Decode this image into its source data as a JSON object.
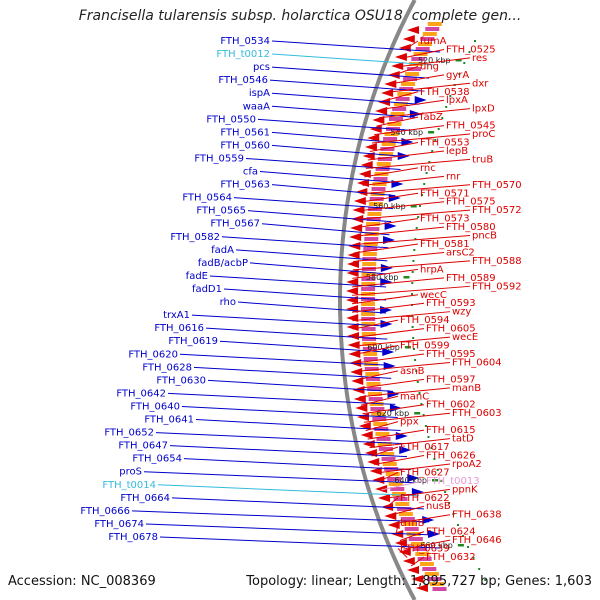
{
  "title": "Francisella tularensis subsp. holarctica OSU18, complete gen...",
  "footer": {
    "accession": "Accession: NC_008369",
    "topology": "Topology: linear; Length: 1,895,727 bp; Genes: 1,603"
  },
  "colors": {
    "forward": "#0000cc",
    "reverse": "#dd0000",
    "trna": "#33bbdd",
    "rrna_rev": "#e79ad5",
    "kbp_mark": "#228822",
    "backbone": "#888888"
  },
  "kbp_marks": [
    {
      "label": "520 kbp"
    },
    {
      "label": "540 kbp"
    },
    {
      "label": "560 kbp"
    },
    {
      "label": "580 kbp"
    },
    {
      "label": "600 kbp"
    },
    {
      "label": "620 kbp"
    },
    {
      "label": "640 kbp"
    },
    {
      "label": "660 kbp"
    }
  ],
  "left_labels": [
    {
      "text": "FTH_0534",
      "type": "cds"
    },
    {
      "text": "FTH_t0012",
      "type": "trna"
    },
    {
      "text": "pcs",
      "type": "cds"
    },
    {
      "text": "FTH_0546",
      "type": "cds"
    },
    {
      "text": "ispA",
      "type": "cds"
    },
    {
      "text": "waaA",
      "type": "cds"
    },
    {
      "text": "FTH_0550",
      "type": "cds"
    },
    {
      "text": "FTH_0561",
      "type": "cds"
    },
    {
      "text": "FTH_0560",
      "type": "cds"
    },
    {
      "text": "FTH_0559",
      "type": "cds"
    },
    {
      "text": "cfa",
      "type": "cds"
    },
    {
      "text": "FTH_0563",
      "type": "cds"
    },
    {
      "text": "FTH_0564",
      "type": "cds"
    },
    {
      "text": "FTH_0565",
      "type": "cds"
    },
    {
      "text": "FTH_0567",
      "type": "cds"
    },
    {
      "text": "FTH_0582",
      "type": "cds"
    },
    {
      "text": "fadA",
      "type": "cds"
    },
    {
      "text": "fadB/acbP",
      "type": "cds"
    },
    {
      "text": "fadE",
      "type": "cds"
    },
    {
      "text": "fadD1",
      "type": "cds"
    },
    {
      "text": "rho",
      "type": "cds"
    },
    {
      "text": "trxA1",
      "type": "cds"
    },
    {
      "text": "FTH_0616",
      "type": "cds"
    },
    {
      "text": "FTH_0619",
      "type": "cds"
    },
    {
      "text": "FTH_0620",
      "type": "cds"
    },
    {
      "text": "FTH_0628",
      "type": "cds"
    },
    {
      "text": "FTH_0630",
      "type": "cds"
    },
    {
      "text": "FTH_0642",
      "type": "cds"
    },
    {
      "text": "FTH_0640",
      "type": "cds"
    },
    {
      "text": "FTH_0641",
      "type": "cds"
    },
    {
      "text": "FTH_0652",
      "type": "cds"
    },
    {
      "text": "FTH_0647",
      "type": "cds"
    },
    {
      "text": "FTH_0654",
      "type": "cds"
    },
    {
      "text": "proS",
      "type": "cds"
    },
    {
      "text": "FTH_t0014",
      "type": "trna"
    },
    {
      "text": "FTH_0664",
      "type": "cds"
    },
    {
      "text": "FTH_0666",
      "type": "cds"
    },
    {
      "text": "FTH_0674",
      "type": "cds"
    },
    {
      "text": "FTH_0678",
      "type": "cds"
    }
  ],
  "right_labels": [
    {
      "text": "fumA",
      "type": "cds"
    },
    {
      "text": "FTH_0525",
      "type": "cds"
    },
    {
      "text": "res",
      "type": "cds"
    },
    {
      "text": "ung",
      "type": "cds"
    },
    {
      "text": "gyrA",
      "type": "cds"
    },
    {
      "text": "dxr",
      "type": "cds"
    },
    {
      "text": "FTH_0538",
      "type": "cds"
    },
    {
      "text": "lpxA",
      "type": "cds"
    },
    {
      "text": "lpxD",
      "type": "cds"
    },
    {
      "text": "fabZ",
      "type": "cds"
    },
    {
      "text": "FTH_0545",
      "type": "cds"
    },
    {
      "text": "proC",
      "type": "cds"
    },
    {
      "text": "FTH_0553",
      "type": "cds"
    },
    {
      "text": "lepB",
      "type": "cds"
    },
    {
      "text": "truB",
      "type": "cds"
    },
    {
      "text": "rnc",
      "type": "cds"
    },
    {
      "text": "rnr",
      "type": "cds"
    },
    {
      "text": "FTH_0570",
      "type": "cds"
    },
    {
      "text": "FTH_0571",
      "type": "cds"
    },
    {
      "text": "FTH_0575",
      "type": "cds"
    },
    {
      "text": "FTH_0572",
      "type": "cds"
    },
    {
      "text": "FTH_0573",
      "type": "cds"
    },
    {
      "text": "FTH_0580",
      "type": "cds"
    },
    {
      "text": "pncB",
      "type": "cds"
    },
    {
      "text": "FTH_0581",
      "type": "cds"
    },
    {
      "text": "arsC2",
      "type": "cds"
    },
    {
      "text": "FTH_0588",
      "type": "cds"
    },
    {
      "text": "hrpA",
      "type": "cds"
    },
    {
      "text": "FTH_0589",
      "type": "cds"
    },
    {
      "text": "FTH_0592",
      "type": "cds"
    },
    {
      "text": "wecC",
      "type": "cds"
    },
    {
      "text": "FTH_0593",
      "type": "cds"
    },
    {
      "text": "wzy",
      "type": "cds"
    },
    {
      "text": "FTH_0594",
      "type": "cds"
    },
    {
      "text": "FTH_0605",
      "type": "cds"
    },
    {
      "text": "wecE",
      "type": "cds"
    },
    {
      "text": "FTH_0599",
      "type": "cds"
    },
    {
      "text": "FTH_0595",
      "type": "cds"
    },
    {
      "text": "FTH_0604",
      "type": "cds"
    },
    {
      "text": "asnB",
      "type": "cds"
    },
    {
      "text": "FTH_0597",
      "type": "cds"
    },
    {
      "text": "manB",
      "type": "cds"
    },
    {
      "text": "manC",
      "type": "cds"
    },
    {
      "text": "FTH_0602",
      "type": "cds"
    },
    {
      "text": "FTH_0603",
      "type": "cds"
    },
    {
      "text": "ppx",
      "type": "cds"
    },
    {
      "text": "FTH_0615",
      "type": "cds"
    },
    {
      "text": "tatD",
      "type": "cds"
    },
    {
      "text": "FTH_0617",
      "type": "cds"
    },
    {
      "text": "FTH_0626",
      "type": "cds"
    },
    {
      "text": "rpoA2",
      "type": "cds"
    },
    {
      "text": "FTH_0627",
      "type": "cds"
    },
    {
      "text": "FTH_t0013",
      "type": "rrna"
    },
    {
      "text": "ppnK",
      "type": "cds"
    },
    {
      "text": "FTH_0622",
      "type": "cds"
    },
    {
      "text": "nusB",
      "type": "cds"
    },
    {
      "text": "FTH_0638",
      "type": "cds"
    },
    {
      "text": "trmB",
      "type": "cds"
    },
    {
      "text": "FTH_0624",
      "type": "cds"
    },
    {
      "text": "FTH_0646",
      "type": "cds"
    },
    {
      "text": "FTH_0639",
      "type": "cds"
    },
    {
      "text": "FTH_0632",
      "type": "cds"
    }
  ]
}
